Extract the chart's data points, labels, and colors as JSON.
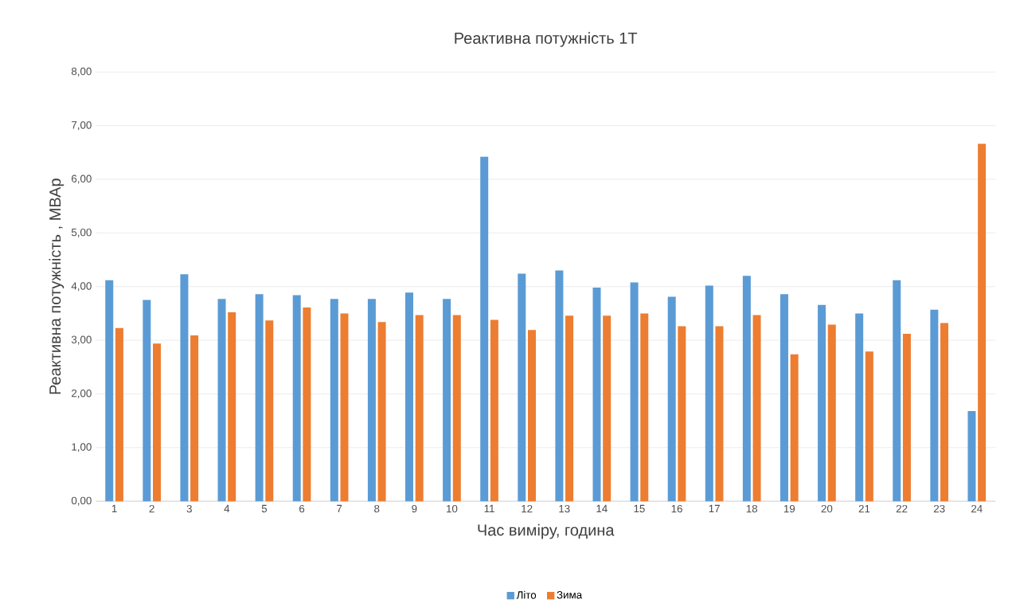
{
  "chart_data": {
    "type": "bar",
    "title": "Реактивна потужність 1Т",
    "xlabel": "Час виміру, година",
    "ylabel": "Реактивна потужність , МВАр",
    "categories": [
      "1",
      "2",
      "3",
      "4",
      "5",
      "6",
      "7",
      "8",
      "9",
      "10",
      "11",
      "12",
      "13",
      "14",
      "15",
      "16",
      "17",
      "18",
      "19",
      "20",
      "21",
      "22",
      "23",
      "24"
    ],
    "series": [
      {
        "name": "Літо",
        "color": "#5b9bd5",
        "values": [
          4.12,
          3.75,
          4.23,
          3.77,
          3.86,
          3.84,
          3.77,
          3.77,
          3.89,
          3.77,
          6.42,
          4.24,
          4.3,
          3.98,
          4.08,
          3.81,
          4.02,
          4.2,
          3.86,
          3.66,
          3.5,
          4.12,
          3.57,
          1.68
        ]
      },
      {
        "name": "Зима",
        "color": "#ed7d31",
        "values": [
          3.23,
          2.94,
          3.09,
          3.52,
          3.37,
          3.61,
          3.5,
          3.34,
          3.47,
          3.47,
          3.38,
          3.19,
          3.46,
          3.46,
          3.5,
          3.26,
          3.26,
          3.47,
          2.74,
          3.29,
          2.79,
          3.12,
          3.32,
          6.66
        ]
      }
    ],
    "ylim": [
      0,
      8
    ],
    "yticks": [
      {
        "value": 0,
        "label": "0,00"
      },
      {
        "value": 1,
        "label": "1,00"
      },
      {
        "value": 2,
        "label": "2,00"
      },
      {
        "value": 3,
        "label": "3,00"
      },
      {
        "value": 4,
        "label": "4,00"
      },
      {
        "value": 5,
        "label": "5,00"
      },
      {
        "value": 6,
        "label": "6,00"
      },
      {
        "value": 7,
        "label": "7,00"
      },
      {
        "value": 8,
        "label": "8,00"
      }
    ],
    "grid": "y",
    "legend": "bottom"
  }
}
